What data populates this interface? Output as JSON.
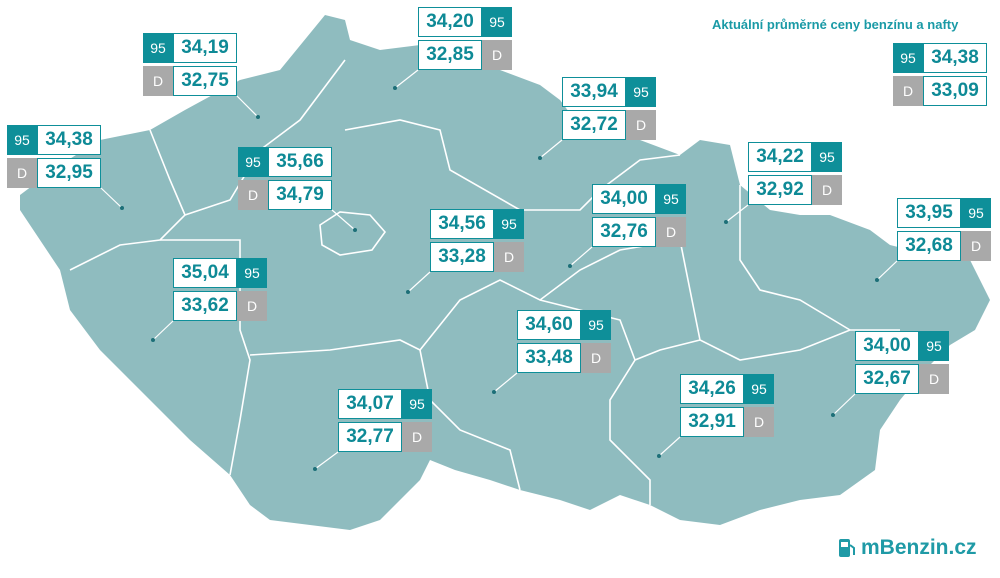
{
  "title": "Aktuální průměrné ceny benzínu a nafty",
  "fuel_labels": {
    "petrol": "95",
    "diesel": "D"
  },
  "national": {
    "petrol": "34,38",
    "diesel": "33,09"
  },
  "regions": [
    {
      "petrol": "34,19",
      "diesel": "32,75"
    },
    {
      "petrol": "34,20",
      "diesel": "32,85"
    },
    {
      "petrol": "34,38",
      "diesel": "32,95"
    },
    {
      "petrol": "35,66",
      "diesel": "34,79"
    },
    {
      "petrol": "33,94",
      "diesel": "32,72"
    },
    {
      "petrol": "34,56",
      "diesel": "33,28"
    },
    {
      "petrol": "34,00",
      "diesel": "32,76"
    },
    {
      "petrol": "34,22",
      "diesel": "32,92"
    },
    {
      "petrol": "33,95",
      "diesel": "32,68"
    },
    {
      "petrol": "35,04",
      "diesel": "33,62"
    },
    {
      "petrol": "34,60",
      "diesel": "33,48"
    },
    {
      "petrol": "34,00",
      "diesel": "32,67"
    },
    {
      "petrol": "34,26",
      "diesel": "32,91"
    },
    {
      "petrol": "34,07",
      "diesel": "32,77"
    }
  ],
  "logo": "mBenzin.cz"
}
